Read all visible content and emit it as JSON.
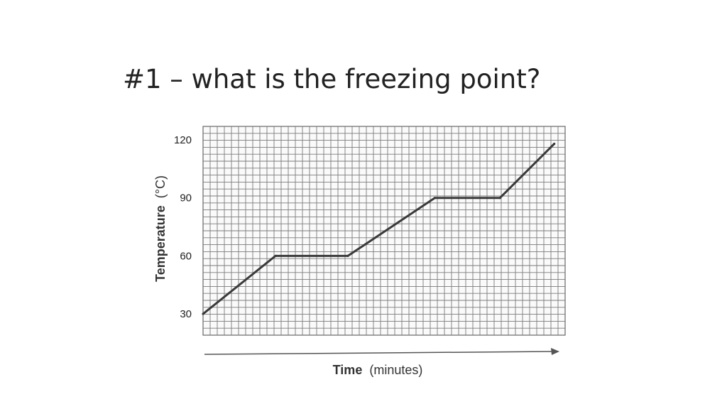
{
  "slide": {
    "title": "#1 – what is the freezing point?"
  },
  "chart_data": {
    "type": "line",
    "title": "",
    "xlabel_bold": "Time",
    "xlabel_unit": "(minutes)",
    "ylabel_bold": "Temperature",
    "ylabel_unit": "(°C)",
    "y_ticks": [
      30,
      60,
      90,
      120
    ],
    "x": [
      0,
      10,
      20,
      32,
      41,
      48.5
    ],
    "y": [
      30,
      60,
      60,
      90,
      90,
      118
    ],
    "xlim": [
      0,
      50
    ],
    "ylim": [
      19,
      127
    ],
    "grid": true,
    "line_color": "#3a3a3a"
  }
}
